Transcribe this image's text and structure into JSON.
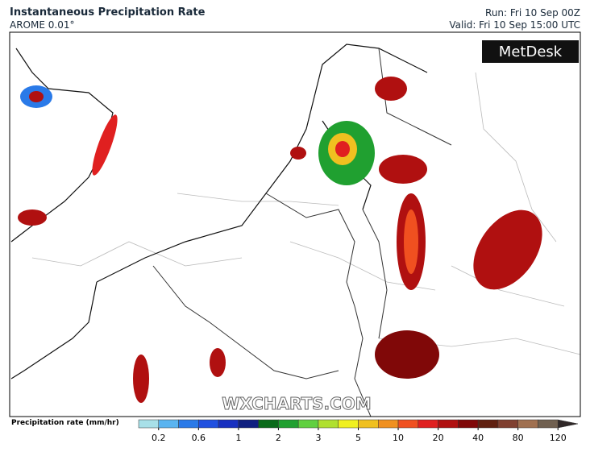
{
  "header": {
    "title": "Instantaneous Precipitation Rate",
    "subtitle": "AROME 0.01°",
    "run": "Run: Fri 10 Sep 00Z",
    "valid": "Valid: Fri 10 Sep 15:00 UTC"
  },
  "logo": "MetDesk",
  "watermark": "WXCHARTS.COM",
  "legend": {
    "label": "Precipitation rate (mm/hr)",
    "colors": [
      "#a8e0e8",
      "#5ab4f0",
      "#2a7ae8",
      "#2050e0",
      "#1830c0",
      "#102080",
      "#0a6a1a",
      "#20a030",
      "#60d040",
      "#b0e030",
      "#f0f020",
      "#f0c020",
      "#f09020",
      "#f05020",
      "#e02020",
      "#b01010",
      "#800808",
      "#602010",
      "#804030",
      "#a07050",
      "#706050",
      "#302828"
    ],
    "ticks": [
      0.2,
      0.6,
      1,
      2,
      3,
      5,
      10,
      20,
      40,
      80,
      120
    ]
  }
}
